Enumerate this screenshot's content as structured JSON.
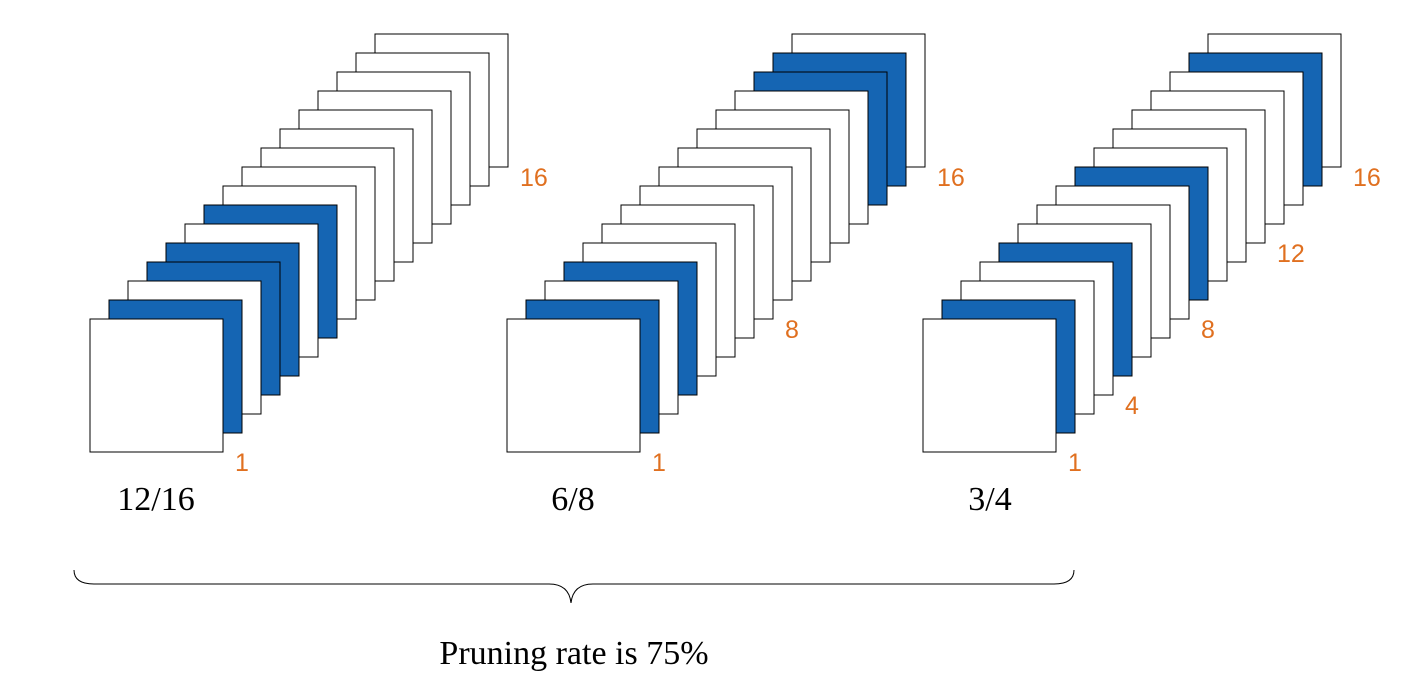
{
  "colors": {
    "filled": "#1565b3",
    "empty": "#ffffff",
    "stroke": "#000000",
    "index_label": "#e07020"
  },
  "groups": [
    {
      "fraction": "12/16",
      "filter_count": 16,
      "filled_filters": [
        2,
        4,
        5,
        7
      ],
      "index_labels": [
        {
          "filter": 1,
          "text": "1"
        },
        {
          "filter": 16,
          "text": "16"
        }
      ]
    },
    {
      "fraction": "6/8",
      "filter_count": 16,
      "filled_filters": [
        2,
        4,
        14,
        15
      ],
      "index_labels": [
        {
          "filter": 1,
          "text": "1"
        },
        {
          "filter": 8,
          "text": "8"
        },
        {
          "filter": 16,
          "text": "16"
        }
      ]
    },
    {
      "fraction": "3/4",
      "filter_count": 16,
      "filled_filters": [
        2,
        5,
        9,
        15
      ],
      "index_labels": [
        {
          "filter": 1,
          "text": "1"
        },
        {
          "filter": 4,
          "text": "4"
        },
        {
          "filter": 8,
          "text": "8"
        },
        {
          "filter": 12,
          "text": "12"
        },
        {
          "filter": 16,
          "text": "16"
        }
      ]
    }
  ],
  "caption": "Pruning rate is 75%"
}
